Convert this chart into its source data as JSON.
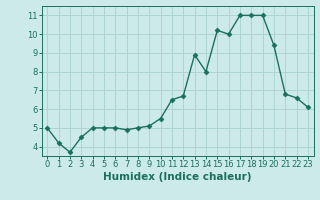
{
  "xlabel": "Humidex (Indice chaleur)",
  "ylabel": "",
  "x": [
    0,
    1,
    2,
    3,
    4,
    5,
    6,
    7,
    8,
    9,
    10,
    11,
    12,
    13,
    14,
    15,
    16,
    17,
    18,
    19,
    20,
    21,
    22,
    23
  ],
  "y": [
    5.0,
    4.2,
    3.7,
    4.5,
    5.0,
    5.0,
    5.0,
    4.9,
    5.0,
    5.1,
    5.5,
    6.5,
    6.7,
    8.9,
    8.0,
    10.2,
    10.0,
    11.0,
    11.0,
    11.0,
    9.4,
    6.8,
    6.6,
    6.1
  ],
  "line_color": "#1a7060",
  "marker": "D",
  "marker_size": 2.5,
  "bg_color": "#cdeaea",
  "grid_color": "#afd4d4",
  "ylim": [
    3.5,
    11.5
  ],
  "xlim": [
    -0.5,
    23.5
  ],
  "yticks": [
    4,
    5,
    6,
    7,
    8,
    9,
    10,
    11
  ],
  "xticks": [
    0,
    1,
    2,
    3,
    4,
    5,
    6,
    7,
    8,
    9,
    10,
    11,
    12,
    13,
    14,
    15,
    16,
    17,
    18,
    19,
    20,
    21,
    22,
    23
  ],
  "tick_fontsize": 6,
  "xlabel_fontsize": 7.5,
  "line_width": 1.0,
  "axes_color": "#1a7060"
}
